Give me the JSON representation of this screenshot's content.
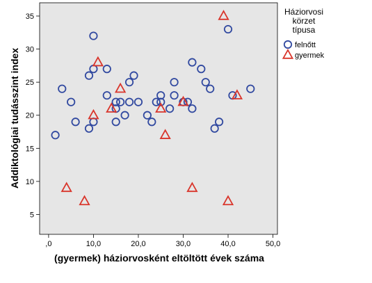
{
  "chart_data": {
    "type": "scatter",
    "xlabel": "(gyermek) háziorvosként eltöltött évek száma",
    "ylabel": "Addiktológiai tudásszint index",
    "xlim": [
      -2,
      51
    ],
    "ylim": [
      2,
      37
    ],
    "x_ticks": [
      0,
      10,
      20,
      30,
      40,
      50
    ],
    "x_tick_labels": [
      ",0",
      "10,0",
      "20,0",
      "30,0",
      "40,0",
      "50,0"
    ],
    "y_ticks": [
      5,
      10,
      15,
      20,
      25,
      30,
      35
    ],
    "y_tick_labels": [
      "5",
      "10",
      "15",
      "20",
      "25",
      "30",
      "35"
    ],
    "grid": false,
    "plot_background": "#e6e6e6",
    "legend": {
      "title_lines": [
        "Háziorvosi",
        "körzet",
        "típusa"
      ],
      "placement": "right"
    },
    "series": [
      {
        "name": "felnőtt",
        "marker": "circle",
        "color": "#3149a0",
        "points": [
          [
            1.5,
            17
          ],
          [
            3,
            24
          ],
          [
            5,
            22
          ],
          [
            6,
            19
          ],
          [
            9,
            18
          ],
          [
            9,
            26
          ],
          [
            10,
            32
          ],
          [
            10,
            27
          ],
          [
            10,
            19
          ],
          [
            13,
            27
          ],
          [
            13,
            23
          ],
          [
            15,
            22
          ],
          [
            15,
            21
          ],
          [
            15,
            19
          ],
          [
            16,
            22
          ],
          [
            17,
            20
          ],
          [
            18,
            25
          ],
          [
            18,
            22
          ],
          [
            19,
            26
          ],
          [
            20,
            22
          ],
          [
            22,
            20
          ],
          [
            23,
            19
          ],
          [
            24,
            22
          ],
          [
            25,
            23
          ],
          [
            25,
            22
          ],
          [
            27,
            21
          ],
          [
            28,
            25
          ],
          [
            28,
            23
          ],
          [
            30,
            22
          ],
          [
            31,
            22
          ],
          [
            32,
            28
          ],
          [
            32,
            21
          ],
          [
            34,
            27
          ],
          [
            35,
            25
          ],
          [
            36,
            24
          ],
          [
            37,
            18
          ],
          [
            38,
            19
          ],
          [
            40,
            33
          ],
          [
            41,
            23
          ],
          [
            45,
            24
          ]
        ]
      },
      {
        "name": "gyermek",
        "marker": "triangle",
        "color": "#d9352b",
        "points": [
          [
            4,
            9
          ],
          [
            8,
            7
          ],
          [
            10,
            20
          ],
          [
            11,
            28
          ],
          [
            14,
            21
          ],
          [
            16,
            24
          ],
          [
            25,
            21
          ],
          [
            26,
            17
          ],
          [
            30,
            22
          ],
          [
            32,
            9
          ],
          [
            39,
            35
          ],
          [
            40,
            7
          ],
          [
            42,
            23
          ]
        ]
      }
    ]
  }
}
